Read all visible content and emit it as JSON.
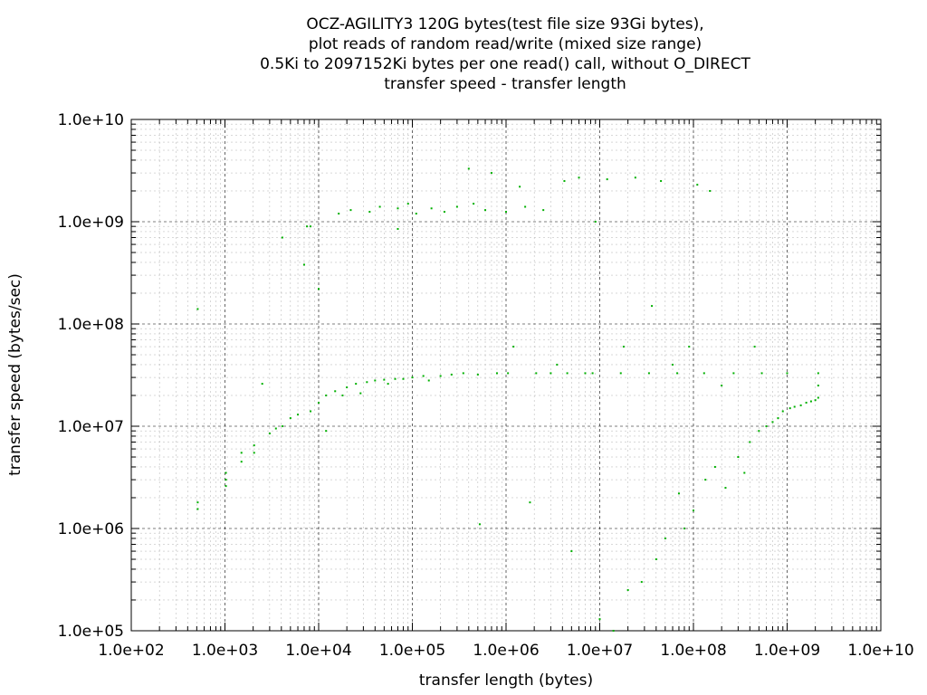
{
  "chart_data": {
    "type": "scatter",
    "title_lines": [
      "OCZ-AGILITY3 120G bytes(test file size 93Gi bytes),",
      "plot reads of random read/write (mixed size range)",
      "0.5Ki to 2097152Ki bytes per one read() call, without O_DIRECT",
      "transfer speed - transfer length"
    ],
    "xlabel": "transfer length (bytes)",
    "ylabel": "transfer speed (bytes/sec)",
    "x_scale": "log",
    "y_scale": "log",
    "xlim": [
      100,
      10000000000
    ],
    "ylim": [
      100000,
      10000000000
    ],
    "x_ticks": [
      "1.0e+02",
      "1.0e+03",
      "1.0e+04",
      "1.0e+05",
      "1.0e+06",
      "1.0e+07",
      "1.0e+08",
      "1.0e+09",
      "1.0e+10"
    ],
    "y_ticks": [
      "1.0e+05",
      "1.0e+06",
      "1.0e+07",
      "1.0e+08",
      "1.0e+09",
      "1.0e+10"
    ],
    "grid": true,
    "series": [
      {
        "color": "#00b000",
        "marker": "dot",
        "points": [
          [
            512,
            140000000
          ],
          [
            512,
            1800000
          ],
          [
            512,
            1550000
          ],
          [
            1024,
            3500000
          ],
          [
            1024,
            3000000
          ],
          [
            1024,
            2600000
          ],
          [
            1500,
            5500000
          ],
          [
            1500,
            4500000
          ],
          [
            2048,
            6500000
          ],
          [
            2048,
            5500000
          ],
          [
            2500,
            26000000
          ],
          [
            3000,
            8500000
          ],
          [
            3500,
            9500000
          ],
          [
            4096,
            10000000
          ],
          [
            4096,
            700000000
          ],
          [
            5000,
            12000000
          ],
          [
            6000,
            13000000
          ],
          [
            7000,
            380000000
          ],
          [
            7500,
            900000000
          ],
          [
            8192,
            14000000
          ],
          [
            8192,
            900000000
          ],
          [
            10000,
            17000000
          ],
          [
            10000,
            220000000
          ],
          [
            12000,
            20000000
          ],
          [
            12000,
            9000000
          ],
          [
            15000,
            22000000
          ],
          [
            16384,
            1200000000
          ],
          [
            18000,
            20000000
          ],
          [
            20000,
            24000000
          ],
          [
            22000,
            1300000000
          ],
          [
            25000,
            26000000
          ],
          [
            28000,
            21000000
          ],
          [
            32768,
            27000000
          ],
          [
            35000,
            1250000000
          ],
          [
            40000,
            28000000
          ],
          [
            45000,
            1400000000
          ],
          [
            50000,
            28500000
          ],
          [
            55000,
            26000000
          ],
          [
            65536,
            29000000
          ],
          [
            70000,
            1350000000
          ],
          [
            70000,
            850000000
          ],
          [
            80000,
            29000000
          ],
          [
            90000,
            1500000000
          ],
          [
            100000,
            30000000
          ],
          [
            110000,
            1200000000
          ],
          [
            131072,
            31000000
          ],
          [
            150000,
            28000000
          ],
          [
            160000,
            1350000000
          ],
          [
            200000,
            31000000
          ],
          [
            220000,
            1250000000
          ],
          [
            262144,
            32000000
          ],
          [
            300000,
            1400000000
          ],
          [
            350000,
            33000000
          ],
          [
            400000,
            3300000000
          ],
          [
            450000,
            1500000000
          ],
          [
            500000,
            32000000
          ],
          [
            524288,
            1100000
          ],
          [
            600000,
            1300000000
          ],
          [
            700000,
            3000000000
          ],
          [
            800000,
            33000000
          ],
          [
            1000000,
            1250000000
          ],
          [
            1048576,
            33000000
          ],
          [
            1200000,
            60000000
          ],
          [
            1400000,
            2200000000
          ],
          [
            1600000,
            1400000000
          ],
          [
            1800000,
            1800000
          ],
          [
            2097152,
            33000000
          ],
          [
            2500000,
            1300000000
          ],
          [
            3000000,
            33000000
          ],
          [
            3500000,
            40000000
          ],
          [
            4194304,
            2500000000
          ],
          [
            4500000,
            33000000
          ],
          [
            5000000,
            600000
          ],
          [
            6000000,
            2700000000
          ],
          [
            7000000,
            33000000
          ],
          [
            8388608,
            33000000
          ],
          [
            9000000,
            1000000000
          ],
          [
            10000000,
            130000
          ],
          [
            12000000,
            2600000000
          ],
          [
            14000000,
            100000
          ],
          [
            16777216,
            33000000
          ],
          [
            18000000,
            60000000
          ],
          [
            20000000,
            250000
          ],
          [
            24000000,
            2700000000
          ],
          [
            28000000,
            300000
          ],
          [
            33554432,
            33000000
          ],
          [
            36000000,
            150000000
          ],
          [
            40000000,
            500000
          ],
          [
            45000000,
            2500000000
          ],
          [
            50000000,
            800000
          ],
          [
            60000000,
            40000000
          ],
          [
            67108864,
            33000000
          ],
          [
            70000000,
            2200000
          ],
          [
            80000000,
            1000000
          ],
          [
            90000000,
            60000000
          ],
          [
            100000000,
            1500000
          ],
          [
            110000000,
            2300000000
          ],
          [
            130000000,
            33000000
          ],
          [
            134217728,
            3000000
          ],
          [
            150000000,
            2000000000
          ],
          [
            170000000,
            4000000
          ],
          [
            200000000,
            25000000
          ],
          [
            220000000,
            2500000
          ],
          [
            268435456,
            33000000
          ],
          [
            300000000,
            5000000
          ],
          [
            350000000,
            3500000
          ],
          [
            400000000,
            7000000
          ],
          [
            450000000,
            60000000
          ],
          [
            500000000,
            9000000
          ],
          [
            536870912,
            33000000
          ],
          [
            600000000,
            10000000
          ],
          [
            700000000,
            11000000
          ],
          [
            800000000,
            12000000
          ],
          [
            900000000,
            14000000
          ],
          [
            1000000000,
            33000000
          ],
          [
            1073741824,
            15000000
          ],
          [
            1200000000,
            15500000
          ],
          [
            1400000000,
            16000000
          ],
          [
            1600000000,
            17000000
          ],
          [
            1800000000,
            17500000
          ],
          [
            2000000000,
            18000000
          ],
          [
            2147483648,
            33000000
          ],
          [
            2147483648,
            19000000
          ],
          [
            2147483648,
            25000000
          ]
        ]
      }
    ]
  }
}
